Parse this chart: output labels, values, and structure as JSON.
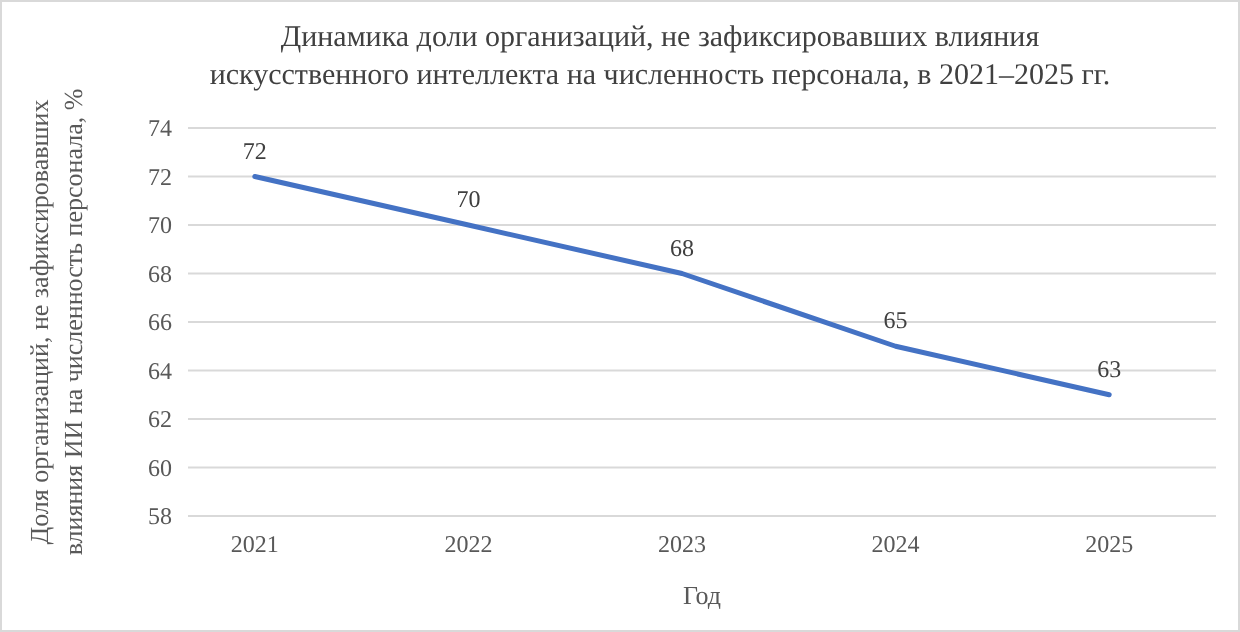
{
  "chart_data": {
    "type": "line",
    "title": "Динамика доли организаций, не зафиксировавших влияния\nискусственного интеллекта на численность персонала, в 2021–2025 гг.",
    "xlabel": "Год",
    "ylabel": "Доля организаций, не зафиксировавших\nвлияния ИИ на численность персонала, %",
    "categories": [
      "2021",
      "2022",
      "2023",
      "2024",
      "2025"
    ],
    "series": [
      {
        "color": "#4472c4",
        "values": [
          72,
          70,
          68,
          65,
          63
        ]
      }
    ],
    "ylim": [
      58,
      74
    ],
    "yticks": [
      58,
      60,
      62,
      64,
      66,
      68,
      70,
      72,
      74
    ],
    "grid": "y",
    "data_labels": true,
    "marker": "none",
    "line_style": "solid"
  }
}
